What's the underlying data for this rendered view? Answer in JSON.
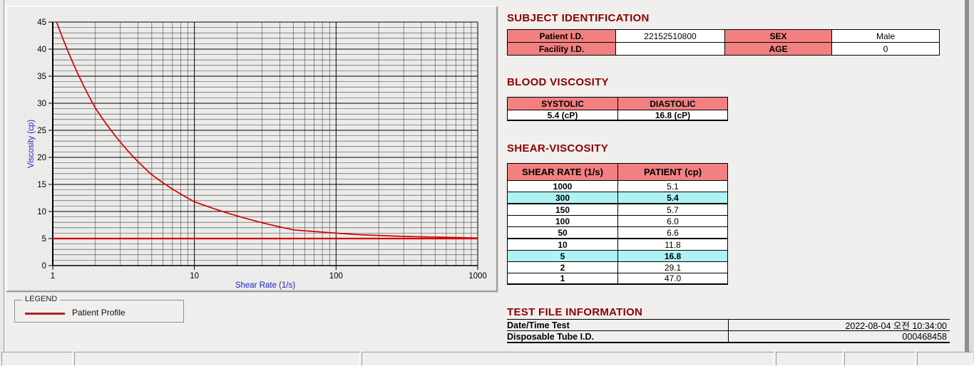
{
  "colors": {
    "section_title": "#8b0000",
    "header_pink": "#f28080",
    "highlight_cyan": "#aef2f2",
    "line_red": "#d40000",
    "baseline_red": "#d40000",
    "axis_label_blue": "#2222cc",
    "grid_major": "#000000",
    "grid_minor": "#3c3c3c"
  },
  "chart_data": {
    "type": "line",
    "title": "",
    "xlabel": "Shear Rate (1/s)",
    "ylabel": "Viscosity (cp)",
    "x_scale": "log",
    "xlim": [
      1,
      1000
    ],
    "ylim": [
      0,
      45
    ],
    "x_major_ticks": [
      1,
      10,
      100,
      1000
    ],
    "y_major_ticks": [
      0,
      5,
      10,
      15,
      20,
      25,
      30,
      35,
      40,
      45
    ],
    "y_minor_step": 1,
    "grid": "major+minor",
    "legend_position": "below-left",
    "series": [
      {
        "name": "Patient Profile",
        "x": [
          1,
          2,
          5,
          10,
          50,
          100,
          150,
          300,
          1000
        ],
        "y": [
          47.0,
          29.1,
          16.8,
          11.8,
          6.6,
          6.0,
          5.7,
          5.4,
          5.1
        ]
      },
      {
        "name": "reference-line",
        "x": [
          1,
          1000
        ],
        "y": [
          5.0,
          5.0
        ]
      }
    ]
  },
  "legend": {
    "title": "LEGEND",
    "entries": [
      {
        "label": "Patient Profile"
      }
    ]
  },
  "subject": {
    "title": "SUBJECT IDENTIFICATION",
    "rows": [
      {
        "label1": "Patient I.D.",
        "value1": "22152510800",
        "label2": "SEX",
        "value2": "Male"
      },
      {
        "label1": "Facility I.D.",
        "value1": "",
        "label2": "AGE",
        "value2": "0"
      }
    ]
  },
  "blood_viscosity": {
    "title": "BLOOD VISCOSITY",
    "headers": [
      "SYSTOLIC",
      "DIASTOLIC"
    ],
    "values": [
      "5.4 (cP)",
      "16.8 (cP)"
    ]
  },
  "shear_viscosity": {
    "title": "SHEAR-VISCOSITY",
    "headers": [
      "SHEAR RATE (1/s)",
      "PATIENT (cp)"
    ],
    "rows": [
      {
        "rate": "1000",
        "value": "5.1",
        "highlight": false
      },
      {
        "rate": "300",
        "value": "5.4",
        "highlight": true
      },
      {
        "rate": "150",
        "value": "5.7",
        "highlight": false
      },
      {
        "rate": "100",
        "value": "6.0",
        "highlight": false
      },
      {
        "rate": "50",
        "value": "6.6",
        "highlight": false
      },
      {
        "rate": "10",
        "value": "11.8",
        "highlight": false
      },
      {
        "rate": "5",
        "value": "16.8",
        "highlight": true
      },
      {
        "rate": "2",
        "value": "29.1",
        "highlight": false
      },
      {
        "rate": "1",
        "value": "47.0",
        "highlight": false
      }
    ]
  },
  "test_file": {
    "title": "TEST FILE INFORMATION",
    "rows": [
      {
        "label": "Date/Time Test",
        "value": "2022-08-04  오전 10:34:00"
      },
      {
        "label": "Disposable Tube I.D.",
        "value": "000468458"
      }
    ]
  }
}
